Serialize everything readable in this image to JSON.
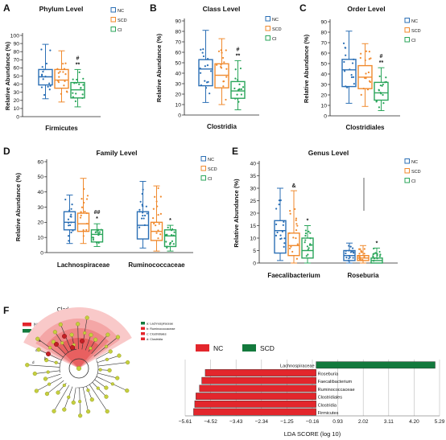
{
  "colors": {
    "NC": "#2b6fb5",
    "SCD": "#f08a2e",
    "CI": "#2aa55a",
    "lda_nc": "#e3262c",
    "lda_scd": "#137a3d",
    "clad_dot": "#c5cf3e"
  },
  "legend": [
    "NC",
    "SCD",
    "CI"
  ],
  "chart_data": [
    {
      "panel": "A",
      "type": "box",
      "title": "Phylum Level",
      "ylabel": "Relative Abundance (%)",
      "ylim": [
        0,
        100
      ],
      "yticks": [
        0,
        10,
        20,
        30,
        40,
        50,
        60,
        70,
        80,
        90,
        100
      ],
      "categories": [
        "Firmicutes"
      ],
      "series": [
        {
          "name": "NC",
          "min": 22,
          "q1": 39,
          "median": 49,
          "q3": 58,
          "max": 89,
          "annotation": ""
        },
        {
          "name": "SCD",
          "min": 18,
          "q1": 35,
          "median": 45,
          "q3": 58,
          "max": 81,
          "annotation": ""
        },
        {
          "name": "CI",
          "min": 12,
          "q1": 23,
          "median": 33,
          "q3": 42,
          "max": 58,
          "annotation": "#\n**"
        }
      ]
    },
    {
      "panel": "B",
      "type": "box",
      "title": "Class Level",
      "ylabel": "Relative Abundance (%)",
      "ylim": [
        0,
        90
      ],
      "yticks": [
        0,
        10,
        20,
        30,
        40,
        50,
        60,
        70,
        80,
        90
      ],
      "categories": [
        "Clostridia"
      ],
      "series": [
        {
          "name": "NC",
          "min": 12,
          "q1": 28,
          "median": 44,
          "q3": 53,
          "max": 81,
          "annotation": ""
        },
        {
          "name": "SCD",
          "min": 10,
          "q1": 26,
          "median": 38,
          "q3": 49,
          "max": 73,
          "annotation": ""
        },
        {
          "name": "CI",
          "min": 5,
          "q1": 16,
          "median": 23,
          "q3": 32,
          "max": 52,
          "annotation": "#\n**"
        }
      ]
    },
    {
      "panel": "C",
      "type": "box",
      "title": "Order Level",
      "ylabel": "Relative Abundance (%)",
      "ylim": [
        0,
        90
      ],
      "yticks": [
        0,
        10,
        20,
        30,
        40,
        50,
        60,
        70,
        80,
        90
      ],
      "categories": [
        "Clostridiales"
      ],
      "series": [
        {
          "name": "NC",
          "min": 12,
          "q1": 28,
          "median": 44,
          "q3": 54,
          "max": 81,
          "annotation": ""
        },
        {
          "name": "SCD",
          "min": 9,
          "q1": 26,
          "median": 37,
          "q3": 48,
          "max": 69,
          "annotation": ""
        },
        {
          "name": "CI",
          "min": 5,
          "q1": 15,
          "median": 22,
          "q3": 32,
          "max": 46,
          "annotation": "#\n**"
        }
      ]
    },
    {
      "panel": "D",
      "type": "box",
      "title": "Family Level",
      "ylabel": "Relative Abundance (%)",
      "ylim": [
        0,
        60
      ],
      "yticks": [
        0,
        10,
        20,
        30,
        40,
        50,
        60
      ],
      "categories": [
        "Lachnospiraceae",
        "Ruminococcaceae"
      ],
      "series": [
        {
          "name": "NC",
          "boxes": [
            {
              "min": 6,
              "q1": 15,
              "median": 20,
              "q3": 27,
              "max": 38,
              "annotation": ""
            },
            {
              "min": 3,
              "q1": 9,
              "median": 18,
              "q3": 27,
              "max": 47,
              "annotation": ""
            }
          ]
        },
        {
          "name": "SCD",
          "boxes": [
            {
              "min": 6,
              "q1": 14,
              "median": 19,
              "q3": 26,
              "max": 49,
              "annotation": ""
            },
            {
              "min": 1,
              "q1": 8,
              "median": 14,
              "q3": 20,
              "max": 44,
              "annotation": ""
            }
          ]
        },
        {
          "name": "CI",
          "boxes": [
            {
              "min": 4,
              "q1": 7,
              "median": 12,
              "q3": 15,
              "max": 19,
              "annotation": "##\n*"
            },
            {
              "min": 1,
              "q1": 4,
              "median": 11,
              "q3": 15,
              "max": 18,
              "annotation": "*"
            }
          ]
        }
      ]
    },
    {
      "panel": "E",
      "type": "box",
      "title": "Genus Level",
      "ylabel": "Relative Abundance (%)",
      "ylim": [
        0,
        40
      ],
      "yticks": [
        0,
        5,
        10,
        15,
        20,
        25,
        30,
        35,
        40
      ],
      "categories": [
        "Faecalibacterium",
        "Roseburia"
      ],
      "series": [
        {
          "name": "NC",
          "boxes": [
            {
              "min": 1,
              "q1": 4,
              "median": 13,
              "q3": 17,
              "max": 30,
              "annotation": ""
            },
            {
              "min": 0,
              "q1": 1,
              "median": 3,
              "q3": 5,
              "max": 8,
              "annotation": ""
            }
          ]
        },
        {
          "name": "SCD",
          "boxes": [
            {
              "min": 0,
              "q1": 3,
              "median": 7,
              "q3": 12,
              "max": 29,
              "annotation": "&"
            },
            {
              "min": 0,
              "q1": 1,
              "median": 2,
              "q3": 3,
              "max": 7,
              "annotation": ""
            }
          ]
        },
        {
          "name": "CI",
          "boxes": [
            {
              "min": 0,
              "q1": 2,
              "median": 5,
              "q3": 10,
              "max": 15,
              "annotation": "*"
            },
            {
              "min": 0,
              "q1": 0,
              "median": 1,
              "q3": 2,
              "max": 6,
              "annotation": "*"
            }
          ]
        }
      ]
    },
    {
      "panel": "F",
      "type": "bar",
      "orientation": "horizontal",
      "xlabel": "LDA SCORE (log 10)",
      "xticks": [
        "−5.61",
        "−4.52",
        "−3.43",
        "−2.34",
        "−1.25",
        "−0.16",
        "0.93",
        "2.02",
        "3.11",
        "4.20",
        "5.29"
      ],
      "xlim": [
        -5.61,
        5.29
      ],
      "legend": [
        "NC",
        "SCD"
      ],
      "categories": [
        "Lachnospiraceae",
        "Roseburia",
        "Faecalibacterium",
        "Ruminococcaceae",
        "Clostridiales",
        "Clostridia",
        "Firmicutes"
      ],
      "series": [
        {
          "name": "LDA",
          "values": [
            5.1,
            -4.75,
            -4.9,
            -5.0,
            -5.15,
            -5.2,
            -5.25
          ],
          "groups": [
            "SCD",
            "NC",
            "NC",
            "NC",
            "NC",
            "NC",
            "NC"
          ]
        }
      ]
    }
  ],
  "cladogram": {
    "title": "Cladogram",
    "legend": [
      "NC",
      "SCD"
    ],
    "key": [
      "a: Lachnospiraceae",
      "b: Ruminococcaceae",
      "c: Clostridiales",
      "d: Clostridia"
    ],
    "labels": [
      "a",
      "b",
      "c",
      "d"
    ]
  }
}
